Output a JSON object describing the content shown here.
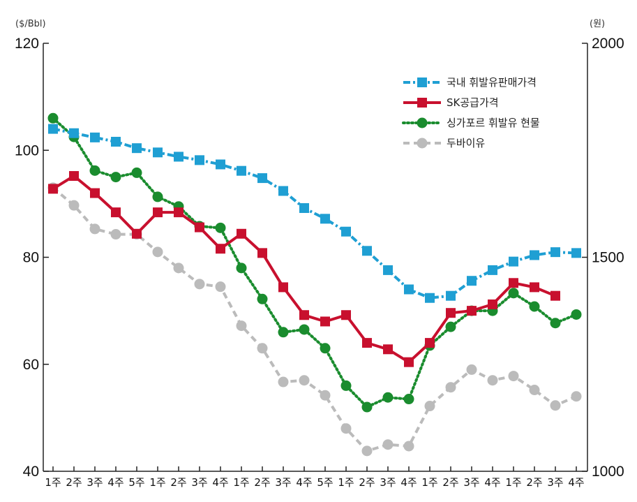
{
  "chart_data": {
    "type": "line",
    "left_axis": {
      "unit": "($/Bbl)",
      "ylim": [
        40,
        120
      ],
      "ticks": [
        "40",
        "60",
        "80",
        "100",
        "120"
      ]
    },
    "right_axis": {
      "unit": "(원)",
      "ylim": [
        1000,
        2000
      ],
      "ticks": [
        "1000",
        "1500",
        "2000"
      ]
    },
    "categories": [
      "1주",
      "2주",
      "3주",
      "4주",
      "5주",
      "1주",
      "2주",
      "3주",
      "4주",
      "1주",
      "2주",
      "3주",
      "4주",
      "5주",
      "1주",
      "2주",
      "3주",
      "4주",
      "1주",
      "2주",
      "3주",
      "4주",
      "1주",
      "2주",
      "3주",
      "4주"
    ],
    "legend_position": "top-right",
    "series": [
      {
        "name": "국내 휘발유판매가격",
        "color": "#1f9fd3",
        "marker": "square",
        "line_style": "dash-dot",
        "axis": "right",
        "values": [
          1800,
          1790,
          1780,
          1770,
          1755,
          1745,
          1735,
          1727,
          1717,
          1702,
          1685,
          1655,
          1615,
          1590,
          1560,
          1515,
          1470,
          1425,
          1405,
          1410,
          1445,
          1470,
          1490,
          1505,
          1512,
          1510
        ]
      },
      {
        "name": "SK공급가격",
        "color": "#c8102e",
        "marker": "square",
        "line_style": "solid",
        "axis": "right",
        "values": [
          1660,
          1690,
          1650,
          1605,
          1555,
          1605,
          1605,
          1570,
          1520,
          1555,
          1510,
          1430,
          1365,
          1350,
          1365,
          1300,
          1285,
          1255,
          1300,
          1370,
          1375,
          1390,
          1440,
          1430,
          1410,
          null
        ]
      },
      {
        "name": "싱가포르 휘발유 현물",
        "color": "#1a8c2e",
        "marker": "circle",
        "line_style": "dotted",
        "axis": "left",
        "values": [
          106,
          102.5,
          96.2,
          95,
          95.8,
          91.3,
          89.5,
          85.8,
          85.5,
          78,
          72.2,
          66,
          66.5,
          63,
          56,
          52,
          53.8,
          53.5,
          63.5,
          67,
          70,
          70,
          73.3,
          70.8,
          67.7,
          69.3
        ]
      },
      {
        "name": "두바이유",
        "color": "#bbbbbb",
        "marker": "circle",
        "line_style": "dashed",
        "axis": "left",
        "values": [
          93,
          89.7,
          85.3,
          84.3,
          84.3,
          81,
          78,
          75,
          74.5,
          67.2,
          63,
          56.7,
          57,
          54.2,
          48,
          43.8,
          45,
          44.7,
          52.2,
          55.7,
          59,
          57,
          57.8,
          55.2,
          52.3,
          54
        ]
      }
    ]
  }
}
